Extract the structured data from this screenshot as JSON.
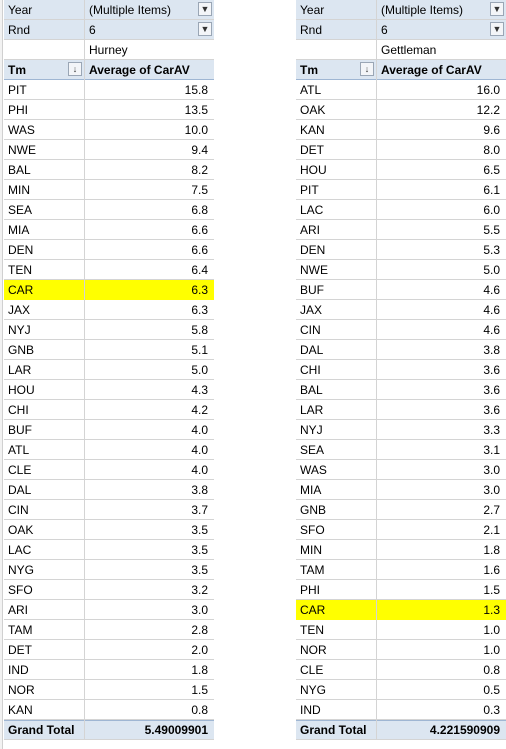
{
  "pivot_left": {
    "filters": [
      {
        "label": "Year",
        "value": "(Multiple Items)",
        "icon": "filter-icon"
      },
      {
        "label": "Rnd",
        "value": "6",
        "icon": "filter-icon"
      }
    ],
    "coach": "Hurney",
    "headers": {
      "team": "Tm",
      "value": "Average of CarAV"
    },
    "rows": [
      {
        "team": "PIT",
        "value": "15.8"
      },
      {
        "team": "PHI",
        "value": "13.5"
      },
      {
        "team": "WAS",
        "value": "10.0"
      },
      {
        "team": "NWE",
        "value": "9.4"
      },
      {
        "team": "BAL",
        "value": "8.2"
      },
      {
        "team": "MIN",
        "value": "7.5"
      },
      {
        "team": "SEA",
        "value": "6.8"
      },
      {
        "team": "MIA",
        "value": "6.6"
      },
      {
        "team": "DEN",
        "value": "6.6"
      },
      {
        "team": "TEN",
        "value": "6.4"
      },
      {
        "team": "CAR",
        "value": "6.3",
        "highlight": true
      },
      {
        "team": "JAX",
        "value": "6.3"
      },
      {
        "team": "NYJ",
        "value": "5.8"
      },
      {
        "team": "GNB",
        "value": "5.1"
      },
      {
        "team": "LAR",
        "value": "5.0"
      },
      {
        "team": "HOU",
        "value": "4.3"
      },
      {
        "team": "CHI",
        "value": "4.2"
      },
      {
        "team": "BUF",
        "value": "4.0"
      },
      {
        "team": "ATL",
        "value": "4.0"
      },
      {
        "team": "CLE",
        "value": "4.0"
      },
      {
        "team": "DAL",
        "value": "3.8"
      },
      {
        "team": "CIN",
        "value": "3.7"
      },
      {
        "team": "OAK",
        "value": "3.5"
      },
      {
        "team": "LAC",
        "value": "3.5"
      },
      {
        "team": "NYG",
        "value": "3.5"
      },
      {
        "team": "SFO",
        "value": "3.2"
      },
      {
        "team": "ARI",
        "value": "3.0"
      },
      {
        "team": "TAM",
        "value": "2.8"
      },
      {
        "team": "DET",
        "value": "2.0"
      },
      {
        "team": "IND",
        "value": "1.8"
      },
      {
        "team": "NOR",
        "value": "1.5"
      },
      {
        "team": "KAN",
        "value": "0.8"
      }
    ],
    "total": {
      "label": "Grand Total",
      "value": "5.49009901"
    }
  },
  "pivot_right": {
    "filters": [
      {
        "label": "Year",
        "value": "(Multiple Items)",
        "icon": "filter-icon"
      },
      {
        "label": "Rnd",
        "value": "6",
        "icon": "filter-icon"
      }
    ],
    "coach": "Gettleman",
    "headers": {
      "team": "Tm",
      "value": "Average of CarAV"
    },
    "rows": [
      {
        "team": "ATL",
        "value": "16.0"
      },
      {
        "team": "OAK",
        "value": "12.2"
      },
      {
        "team": "KAN",
        "value": "9.6"
      },
      {
        "team": "DET",
        "value": "8.0"
      },
      {
        "team": "HOU",
        "value": "6.5"
      },
      {
        "team": "PIT",
        "value": "6.1"
      },
      {
        "team": "LAC",
        "value": "6.0"
      },
      {
        "team": "ARI",
        "value": "5.5"
      },
      {
        "team": "DEN",
        "value": "5.3"
      },
      {
        "team": "NWE",
        "value": "5.0"
      },
      {
        "team": "BUF",
        "value": "4.6"
      },
      {
        "team": "JAX",
        "value": "4.6"
      },
      {
        "team": "CIN",
        "value": "4.6"
      },
      {
        "team": "DAL",
        "value": "3.8"
      },
      {
        "team": "CHI",
        "value": "3.6"
      },
      {
        "team": "BAL",
        "value": "3.6"
      },
      {
        "team": "LAR",
        "value": "3.6"
      },
      {
        "team": "NYJ",
        "value": "3.3"
      },
      {
        "team": "SEA",
        "value": "3.1"
      },
      {
        "team": "WAS",
        "value": "3.0"
      },
      {
        "team": "MIA",
        "value": "3.0"
      },
      {
        "team": "GNB",
        "value": "2.7"
      },
      {
        "team": "SFO",
        "value": "2.1"
      },
      {
        "team": "MIN",
        "value": "1.8"
      },
      {
        "team": "TAM",
        "value": "1.6"
      },
      {
        "team": "PHI",
        "value": "1.5"
      },
      {
        "team": "CAR",
        "value": "1.3",
        "highlight": true
      },
      {
        "team": "TEN",
        "value": "1.0"
      },
      {
        "team": "NOR",
        "value": "1.0"
      },
      {
        "team": "CLE",
        "value": "0.8"
      },
      {
        "team": "NYG",
        "value": "0.5"
      },
      {
        "team": "IND",
        "value": "0.3"
      }
    ],
    "total": {
      "label": "Grand Total",
      "value": "4.221590909"
    }
  },
  "colors": {
    "header_fill": "#dce6f1",
    "highlight": "#ffff00",
    "grid": "#d4d4d4"
  }
}
